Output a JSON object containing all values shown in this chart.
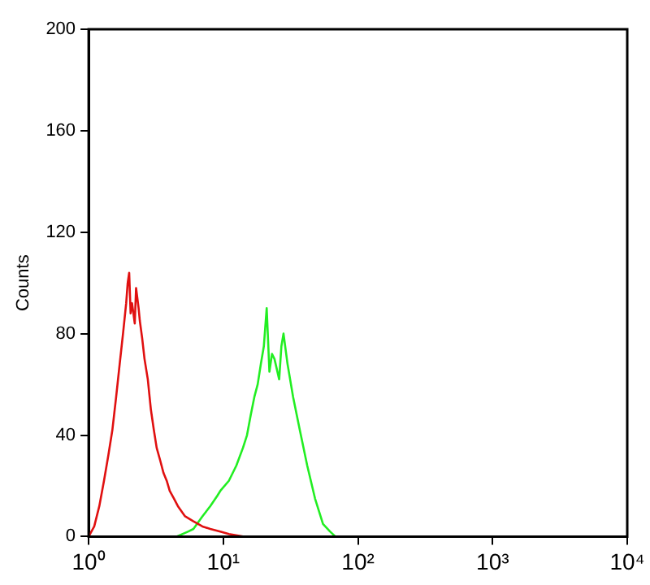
{
  "chart_data": {
    "type": "line",
    "ylabel": "Counts",
    "log": "x",
    "xlim": [
      1,
      10000
    ],
    "xticks": [
      {
        "value": 1,
        "label": "10⁰"
      },
      {
        "value": 10,
        "label": "10¹"
      },
      {
        "value": 100,
        "label": "10²"
      },
      {
        "value": 1000,
        "label": "10³"
      },
      {
        "value": 10000,
        "label": "10⁴"
      }
    ],
    "ylim": [
      0,
      200
    ],
    "yticks": [
      0,
      40,
      80,
      120,
      160,
      200
    ],
    "grid": false,
    "legend": false,
    "marker": "none",
    "series": [
      {
        "color": "#e01010",
        "x": [
          1.0,
          1.1,
          1.2,
          1.3,
          1.4,
          1.5,
          1.6,
          1.7,
          1.8,
          1.9,
          1.95,
          2.0,
          2.05,
          2.1,
          2.2,
          2.25,
          2.35,
          2.4,
          2.5,
          2.6,
          2.75,
          2.9,
          3.05,
          3.2,
          3.4,
          3.6,
          3.8,
          4.0,
          4.3,
          4.6,
          5.2,
          6,
          7,
          8,
          9.5,
          11,
          14
        ],
        "values": [
          0,
          4,
          12,
          22,
          32,
          42,
          55,
          68,
          80,
          92,
          100,
          104,
          88,
          92,
          84,
          98,
          90,
          85,
          78,
          70,
          62,
          50,
          42,
          35,
          30,
          25,
          22,
          18,
          15,
          12,
          8,
          6,
          4,
          3,
          2,
          1,
          0
        ]
      },
      {
        "color": "#22ee22",
        "x": [
          4.5,
          5.5,
          6,
          7,
          8,
          9,
          9.5,
          11,
          12.5,
          14,
          15,
          16,
          17,
          18,
          19,
          20,
          21,
          22,
          23,
          24,
          26,
          27,
          28,
          30,
          33,
          37,
          42,
          48,
          55,
          62,
          68
        ],
        "values": [
          0,
          2,
          3,
          8,
          12,
          16,
          18,
          22,
          28,
          35,
          40,
          48,
          55,
          60,
          68,
          75,
          90,
          65,
          72,
          70,
          62,
          75,
          80,
          68,
          55,
          42,
          28,
          15,
          5,
          2,
          0
        ]
      }
    ]
  }
}
